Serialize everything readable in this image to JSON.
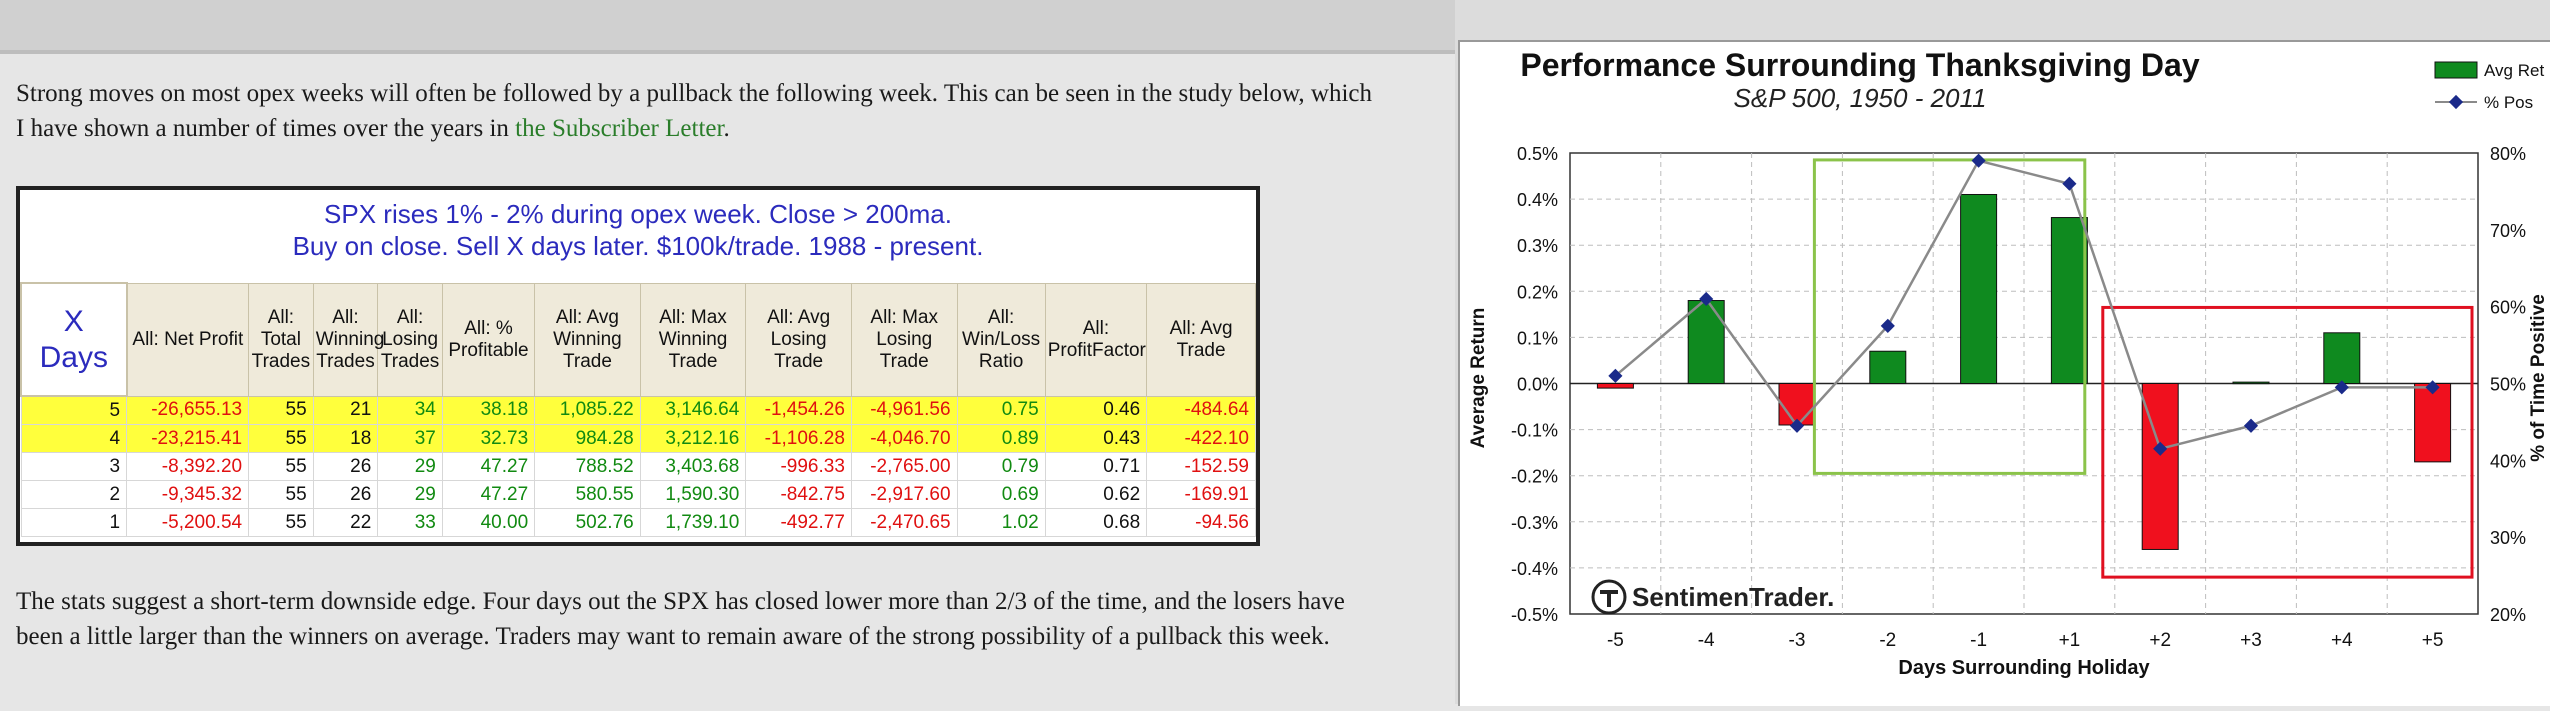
{
  "article": {
    "para1_line1": "Strong moves on most opex weeks will often be followed by a pullback the following week. This can be seen in the study below, which",
    "para1_line2_pre": "I have shown a number of times over the years in ",
    "para1_link": "the Subscriber Letter",
    "para1_line2_post": ".",
    "para2_line1": "The stats suggest a short-term downside edge. Four days out the SPX has closed lower more than 2/3 of the time, and the losers have",
    "para2_line2": "been a little larger than the winners on average. Traders may want to remain aware of the strong possibility of a pullback this week."
  },
  "stats_table": {
    "title_line1": "SPX rises 1% - 2% during opex week. Close > 200ma.",
    "title_line2": "Buy on close. Sell X days later. $100k/trade. 1988 - present.",
    "headers": [
      "X Days",
      "All: Net Profit",
      "All: Total Trades",
      "All: Winning Trades",
      "All: Losing Trades",
      "All: % Profitable",
      "All: Avg Winning Trade",
      "All: Max Winning Trade",
      "All: Avg Losing Trade",
      "All: Max Losing Trade",
      "All: Win/Loss Ratio",
      "All: ProfitFactor",
      "All: Avg Trade"
    ],
    "rows": [
      [
        "5",
        "-26,655.13",
        "55",
        "21",
        "34",
        "38.18",
        "1,085.22",
        "3,146.64",
        "-1,454.26",
        "-4,961.56",
        "0.75",
        "0.46",
        "-484.64"
      ],
      [
        "4",
        "-23,215.41",
        "55",
        "18",
        "37",
        "32.73",
        "984.28",
        "3,212.16",
        "-1,106.28",
        "-4,046.70",
        "0.89",
        "0.43",
        "-422.10"
      ],
      [
        "3",
        "-8,392.20",
        "55",
        "26",
        "29",
        "47.27",
        "788.52",
        "3,403.68",
        "-996.33",
        "-2,765.00",
        "0.79",
        "0.71",
        "-152.59"
      ],
      [
        "2",
        "-9,345.32",
        "55",
        "26",
        "29",
        "47.27",
        "580.55",
        "1,590.30",
        "-842.75",
        "-2,917.60",
        "0.69",
        "0.62",
        "-169.91"
      ],
      [
        "1",
        "-5,200.54",
        "55",
        "22",
        "33",
        "40.00",
        "502.76",
        "1,739.10",
        "-492.77",
        "-2,470.65",
        "1.02",
        "0.68",
        "-94.56"
      ]
    ]
  },
  "chart_data": {
    "type": "bar",
    "title": "Performance Surrounding Thanksgiving Day",
    "subtitle": "S&P 500, 1950 - 2011",
    "xlabel": "Days Surrounding Holiday",
    "ylabel": "Average Return",
    "y2label": "% of Time Positive",
    "categories": [
      "-5",
      "-4",
      "-3",
      "-2",
      "-1",
      "+1",
      "+2",
      "+3",
      "+4",
      "+5"
    ],
    "ylim": [
      -0.5,
      0.5
    ],
    "y2lim": [
      20,
      80
    ],
    "yticks": [
      "0.5%",
      "0.4%",
      "0.3%",
      "0.2%",
      "0.1%",
      "0.0%",
      "-0.1%",
      "-0.2%",
      "-0.3%",
      "-0.4%",
      "-0.5%"
    ],
    "y2ticks": [
      "80%",
      "70%",
      "60%",
      "50%",
      "40%",
      "30%",
      "20%"
    ],
    "series": [
      {
        "name": "Avg Ret",
        "type": "bar",
        "values": [
          -0.01,
          0.18,
          -0.09,
          0.07,
          0.41,
          0.36,
          -0.36,
          0.003,
          0.11,
          -0.17
        ]
      },
      {
        "name": "% Pos",
        "type": "line",
        "axis": "secondary",
        "values": [
          51,
          61,
          44.5,
          57.5,
          79,
          76,
          41.5,
          44.5,
          49.5,
          49.5
        ]
      }
    ],
    "legend_position": "top-right",
    "grid": true,
    "colors": {
      "positive": "#0f8a1f",
      "negative": "#f0101e",
      "line": "#8a8a8a",
      "marker": "#1a2a8a",
      "box_green": "#8bc34a",
      "box_red": "#e01020"
    },
    "watermark": "SentimenTrader."
  }
}
